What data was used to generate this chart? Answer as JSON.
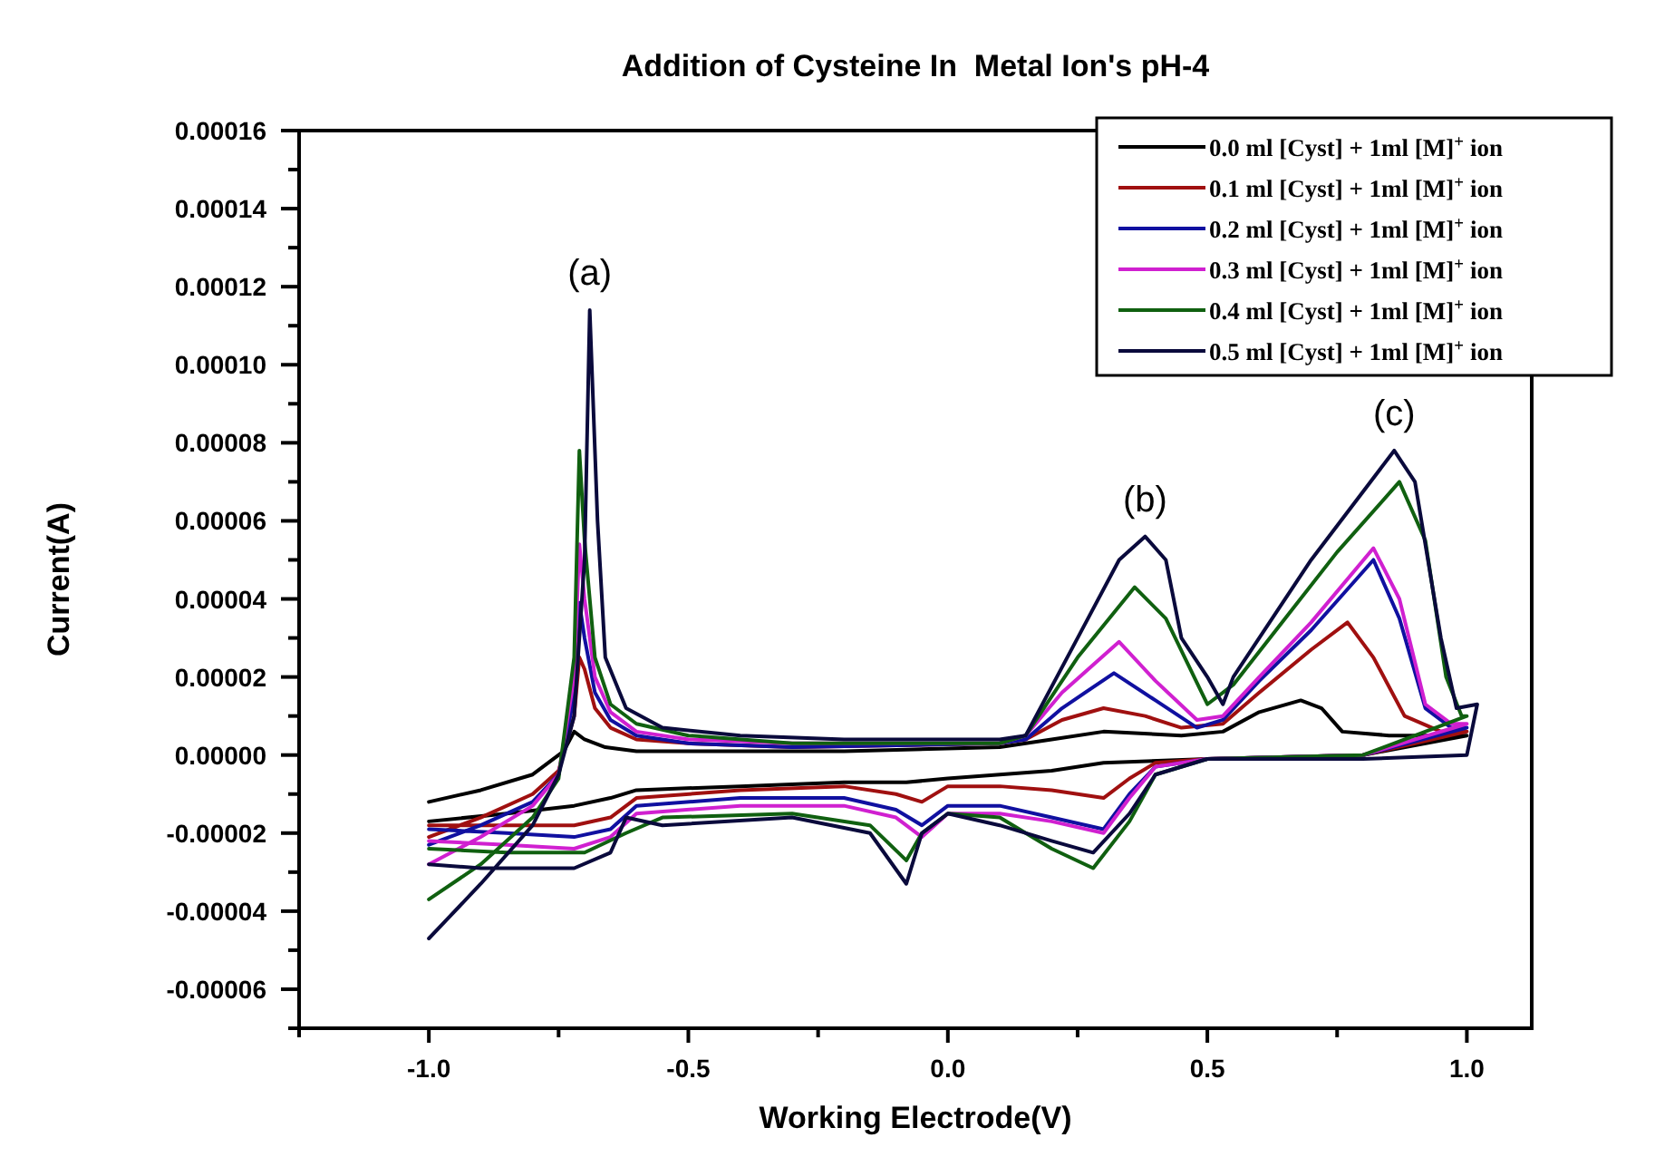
{
  "chart_data": {
    "type": "line",
    "title": "Addition of Cysteine In  Metal Ion's pH-4",
    "xlabel": "Working Electrode(V)",
    "ylabel": "Current(A)",
    "xlim": [
      -1.25,
      1.125
    ],
    "ylim": [
      -7e-05,
      0.00016
    ],
    "xticks": [
      {
        "value": -1.25,
        "label": null
      },
      {
        "value": -1,
        "label": "-1.0"
      },
      {
        "value": -0.75,
        "label": null
      },
      {
        "value": -0.5,
        "label": "-0.5"
      },
      {
        "value": -0.25,
        "label": null
      },
      {
        "value": 0,
        "label": "0.0"
      },
      {
        "value": 0.25,
        "label": null
      },
      {
        "value": 0.5,
        "label": "0.5"
      },
      {
        "value": 0.75,
        "label": null
      },
      {
        "value": 1,
        "label": "1.0"
      }
    ],
    "yticks": [
      {
        "value": -7e-05,
        "label": null
      },
      {
        "value": -6e-05,
        "label": "-0.00006"
      },
      {
        "value": -5e-05,
        "label": null
      },
      {
        "value": -4e-05,
        "label": "-0.00004"
      },
      {
        "value": -3e-05,
        "label": null
      },
      {
        "value": -2e-05,
        "label": "-0.00002"
      },
      {
        "value": -1e-05,
        "label": null
      },
      {
        "value": 0,
        "label": "0.00000"
      },
      {
        "value": 1e-05,
        "label": null
      },
      {
        "value": 2e-05,
        "label": "0.00002"
      },
      {
        "value": 3e-05,
        "label": null
      },
      {
        "value": 4e-05,
        "label": "0.00004"
      },
      {
        "value": 5e-05,
        "label": null
      },
      {
        "value": 6e-05,
        "label": "0.00006"
      },
      {
        "value": 7e-05,
        "label": null
      },
      {
        "value": 8e-05,
        "label": "0.00008"
      },
      {
        "value": 9e-05,
        "label": null
      },
      {
        "value": 0.0001,
        "label": "0.00010"
      },
      {
        "value": 0.00011,
        "label": null
      },
      {
        "value": 0.00012,
        "label": "0.00012"
      },
      {
        "value": 0.00013,
        "label": null
      },
      {
        "value": 0.00014,
        "label": "0.00014"
      },
      {
        "value": 0.00015,
        "label": null
      },
      {
        "value": 0.00016,
        "label": "0.00016"
      }
    ],
    "grid": false,
    "legend": "top right",
    "marker": "none",
    "line_style": "solid",
    "annotations": [
      {
        "text": "(a)",
        "x": -0.69,
        "y": 0.000114
      },
      {
        "text": "(b)",
        "x": 0.38,
        "y": 5.6e-05
      },
      {
        "text": "(c)",
        "x": 0.86,
        "y": 7.8e-05
      }
    ],
    "series": [
      {
        "name": "0.0 ml [Cyst] + 1ml [M]$^{+}$ ion",
        "color": "#000000",
        "x": [
          -1.0,
          -0.9,
          -0.8,
          -0.74,
          -0.72,
          -0.7,
          -0.66,
          -0.6,
          -0.4,
          -0.2,
          0.1,
          0.2,
          0.3,
          0.45,
          0.53,
          0.6,
          0.68,
          0.72,
          0.76,
          0.85,
          1.0,
          0.8,
          0.5,
          0.3,
          0.2,
          0.0,
          -0.08,
          -0.2,
          -0.4,
          -0.6,
          -0.65,
          -0.72,
          -0.85,
          -1.0
        ],
        "values": [
          -1.2e-05,
          -9e-06,
          -5e-06,
          1e-06,
          6e-06,
          4e-06,
          2e-06,
          1e-06,
          1e-06,
          1e-06,
          2e-06,
          4e-06,
          6e-06,
          5e-06,
          6e-06,
          1.1e-05,
          1.4e-05,
          1.2e-05,
          6e-06,
          5e-06,
          5e-06,
          0.0,
          -1e-06,
          -2e-06,
          -4e-06,
          -6e-06,
          -7e-06,
          -7e-06,
          -8e-06,
          -9e-06,
          -1.1e-05,
          -1.3e-05,
          -1.5e-05,
          -1.7e-05
        ]
      },
      {
        "name": "0.1 ml [Cyst] + 1ml [M]$^{+}$ ion",
        "color": "#a01010",
        "x": [
          -1.0,
          -0.9,
          -0.8,
          -0.75,
          -0.72,
          -0.71,
          -0.7,
          -0.68,
          -0.65,
          -0.6,
          -0.5,
          -0.3,
          0.1,
          0.15,
          0.22,
          0.3,
          0.38,
          0.45,
          0.53,
          0.6,
          0.7,
          0.77,
          0.82,
          0.88,
          0.95,
          1.0,
          0.8,
          0.5,
          0.4,
          0.35,
          0.3,
          0.2,
          0.1,
          0.0,
          -0.05,
          -0.1,
          -0.2,
          -0.4,
          -0.6,
          -0.65,
          -0.72,
          -0.85,
          -1.0
        ],
        "values": [
          -2.1e-05,
          -1.6e-05,
          -1e-05,
          -4e-06,
          1e-05,
          2.5e-05,
          2.2e-05,
          1.2e-05,
          7e-06,
          4e-06,
          3e-06,
          2e-06,
          3e-06,
          4e-06,
          9e-06,
          1.2e-05,
          1e-05,
          7e-06,
          8e-06,
          1.6e-05,
          2.7e-05,
          3.4e-05,
          2.5e-05,
          1e-05,
          6e-06,
          6e-06,
          0.0,
          -1e-06,
          -2e-06,
          -6e-06,
          -1.1e-05,
          -9e-06,
          -8e-06,
          -8e-06,
          -1.2e-05,
          -1e-05,
          -8e-06,
          -9e-06,
          -1.1e-05,
          -1.6e-05,
          -1.8e-05,
          -1.8e-05,
          -1.8e-05
        ]
      },
      {
        "name": "0.2 ml [Cyst] + 1ml [M]$^{+}$ ion",
        "color": "#1010a0",
        "x": [
          -1.0,
          -0.9,
          -0.8,
          -0.75,
          -0.72,
          -0.71,
          -0.7,
          -0.68,
          -0.65,
          -0.6,
          -0.5,
          -0.3,
          0.1,
          0.15,
          0.22,
          0.32,
          0.4,
          0.48,
          0.53,
          0.6,
          0.7,
          0.82,
          0.87,
          0.92,
          0.97,
          1.0,
          0.8,
          0.5,
          0.4,
          0.35,
          0.3,
          0.2,
          0.1,
          0.0,
          -0.05,
          -0.1,
          -0.2,
          -0.4,
          -0.6,
          -0.65,
          -0.72,
          -0.85,
          -1.0
        ],
        "values": [
          -2.3e-05,
          -1.8e-05,
          -1.2e-05,
          -5e-06,
          1.5e-05,
          3.9e-05,
          3e-05,
          1.6e-05,
          9e-06,
          5e-06,
          3e-06,
          2e-06,
          3e-06,
          4e-06,
          1.2e-05,
          2.1e-05,
          1.4e-05,
          7e-06,
          9e-06,
          1.9e-05,
          3.2e-05,
          5e-05,
          3.5e-05,
          1.2e-05,
          7e-06,
          7e-06,
          0.0,
          -1e-06,
          -3e-06,
          -1e-05,
          -1.9e-05,
          -1.6e-05,
          -1.3e-05,
          -1.3e-05,
          -1.8e-05,
          -1.4e-05,
          -1.1e-05,
          -1.1e-05,
          -1.3e-05,
          -1.9e-05,
          -2.1e-05,
          -2e-05,
          -1.9e-05
        ]
      },
      {
        "name": "0.3 ml [Cyst] + 1ml [M]$^{+}$ ion",
        "color": "#d020d0",
        "x": [
          -1.0,
          -0.9,
          -0.8,
          -0.75,
          -0.72,
          -0.71,
          -0.7,
          -0.68,
          -0.65,
          -0.6,
          -0.5,
          -0.3,
          0.1,
          0.15,
          0.22,
          0.33,
          0.4,
          0.48,
          0.53,
          0.6,
          0.7,
          0.82,
          0.87,
          0.92,
          0.97,
          1.0,
          0.8,
          0.5,
          0.4,
          0.35,
          0.3,
          0.2,
          0.1,
          0.0,
          -0.05,
          -0.1,
          -0.2,
          -0.4,
          -0.6,
          -0.65,
          -0.72,
          -0.85,
          -1.0
        ],
        "values": [
          -2.8e-05,
          -2.1e-05,
          -1.3e-05,
          -5e-06,
          2e-05,
          5.4e-05,
          4e-05,
          2e-05,
          1.1e-05,
          6e-06,
          4e-06,
          3e-06,
          3e-06,
          5e-06,
          1.6e-05,
          2.9e-05,
          1.9e-05,
          9e-06,
          1e-05,
          2e-05,
          3.4e-05,
          5.3e-05,
          4e-05,
          1.3e-05,
          8e-06,
          8e-06,
          0.0,
          -1e-06,
          -3e-06,
          -1.1e-05,
          -2e-05,
          -1.7e-05,
          -1.5e-05,
          -1.5e-05,
          -2.1e-05,
          -1.6e-05,
          -1.3e-05,
          -1.3e-05,
          -1.5e-05,
          -2.1e-05,
          -2.4e-05,
          -2.3e-05,
          -2.2e-05
        ]
      },
      {
        "name": "0.4 ml [Cyst] + 1ml [M]$^{+}$ ion",
        "color": "#106010",
        "x": [
          -1.0,
          -0.9,
          -0.8,
          -0.75,
          -0.72,
          -0.71,
          -0.7,
          -0.68,
          -0.65,
          -0.6,
          -0.5,
          -0.3,
          0.1,
          0.15,
          0.25,
          0.36,
          0.42,
          0.5,
          0.55,
          0.65,
          0.75,
          0.87,
          0.92,
          0.96,
          0.99,
          1.0,
          0.8,
          0.5,
          0.4,
          0.35,
          0.28,
          0.2,
          0.1,
          0.0,
          -0.05,
          -0.08,
          -0.15,
          -0.3,
          -0.55,
          -0.62,
          -0.7,
          -0.85,
          -1.0
        ],
        "values": [
          -3.7e-05,
          -2.8e-05,
          -1.6e-05,
          -6e-06,
          2.5e-05,
          7.8e-05,
          5.5e-05,
          2.5e-05,
          1.3e-05,
          8e-06,
          5e-06,
          3e-06,
          3e-06,
          5e-06,
          2.5e-05,
          4.3e-05,
          3.5e-05,
          1.3e-05,
          1.8e-05,
          3.5e-05,
          5.2e-05,
          7e-05,
          5.5e-05,
          2e-05,
          1e-05,
          1e-05,
          0.0,
          -1e-06,
          -5e-06,
          -1.7e-05,
          -2.9e-05,
          -2.4e-05,
          -1.6e-05,
          -1.5e-05,
          -2e-05,
          -2.7e-05,
          -1.8e-05,
          -1.5e-05,
          -1.6e-05,
          -2e-05,
          -2.5e-05,
          -2.5e-05,
          -2.4e-05
        ]
      },
      {
        "name": "0.5 ml [Cyst] + 1ml [M]$^{+}$ ion",
        "color": "#0a0a3c",
        "x": [
          -1.0,
          -0.9,
          -0.8,
          -0.75,
          -0.72,
          -0.7,
          -0.69,
          -0.675,
          -0.66,
          -0.62,
          -0.55,
          -0.4,
          -0.2,
          0.1,
          0.15,
          0.25,
          0.33,
          0.38,
          0.42,
          0.45,
          0.5,
          0.53,
          0.55,
          0.7,
          0.86,
          0.9,
          0.95,
          0.98,
          1.02,
          1.0,
          0.8,
          0.5,
          0.4,
          0.35,
          0.28,
          0.2,
          0.1,
          0.0,
          -0.05,
          -0.08,
          -0.15,
          -0.3,
          -0.55,
          -0.62,
          -0.65,
          -0.72,
          -0.9,
          -1.0
        ],
        "values": [
          -4.7e-05,
          -3.3e-05,
          -1.8e-05,
          -5e-06,
          1e-05,
          5e-05,
          0.000114,
          6e-05,
          2.5e-05,
          1.2e-05,
          7e-06,
          5e-06,
          4e-06,
          4e-06,
          5e-06,
          3e-05,
          5e-05,
          5.6e-05,
          5e-05,
          3e-05,
          2e-05,
          1.3e-05,
          2e-05,
          5e-05,
          7.8e-05,
          7e-05,
          3e-05,
          1.2e-05,
          1.3e-05,
          0.0,
          -1e-06,
          -1e-06,
          -5e-06,
          -1.5e-05,
          -2.5e-05,
          -2.2e-05,
          -1.8e-05,
          -1.5e-05,
          -2e-05,
          -3.3e-05,
          -2e-05,
          -1.6e-05,
          -1.8e-05,
          -1.6e-05,
          -2.5e-05,
          -2.9e-05,
          -2.9e-05,
          -2.8e-05
        ]
      }
    ]
  }
}
